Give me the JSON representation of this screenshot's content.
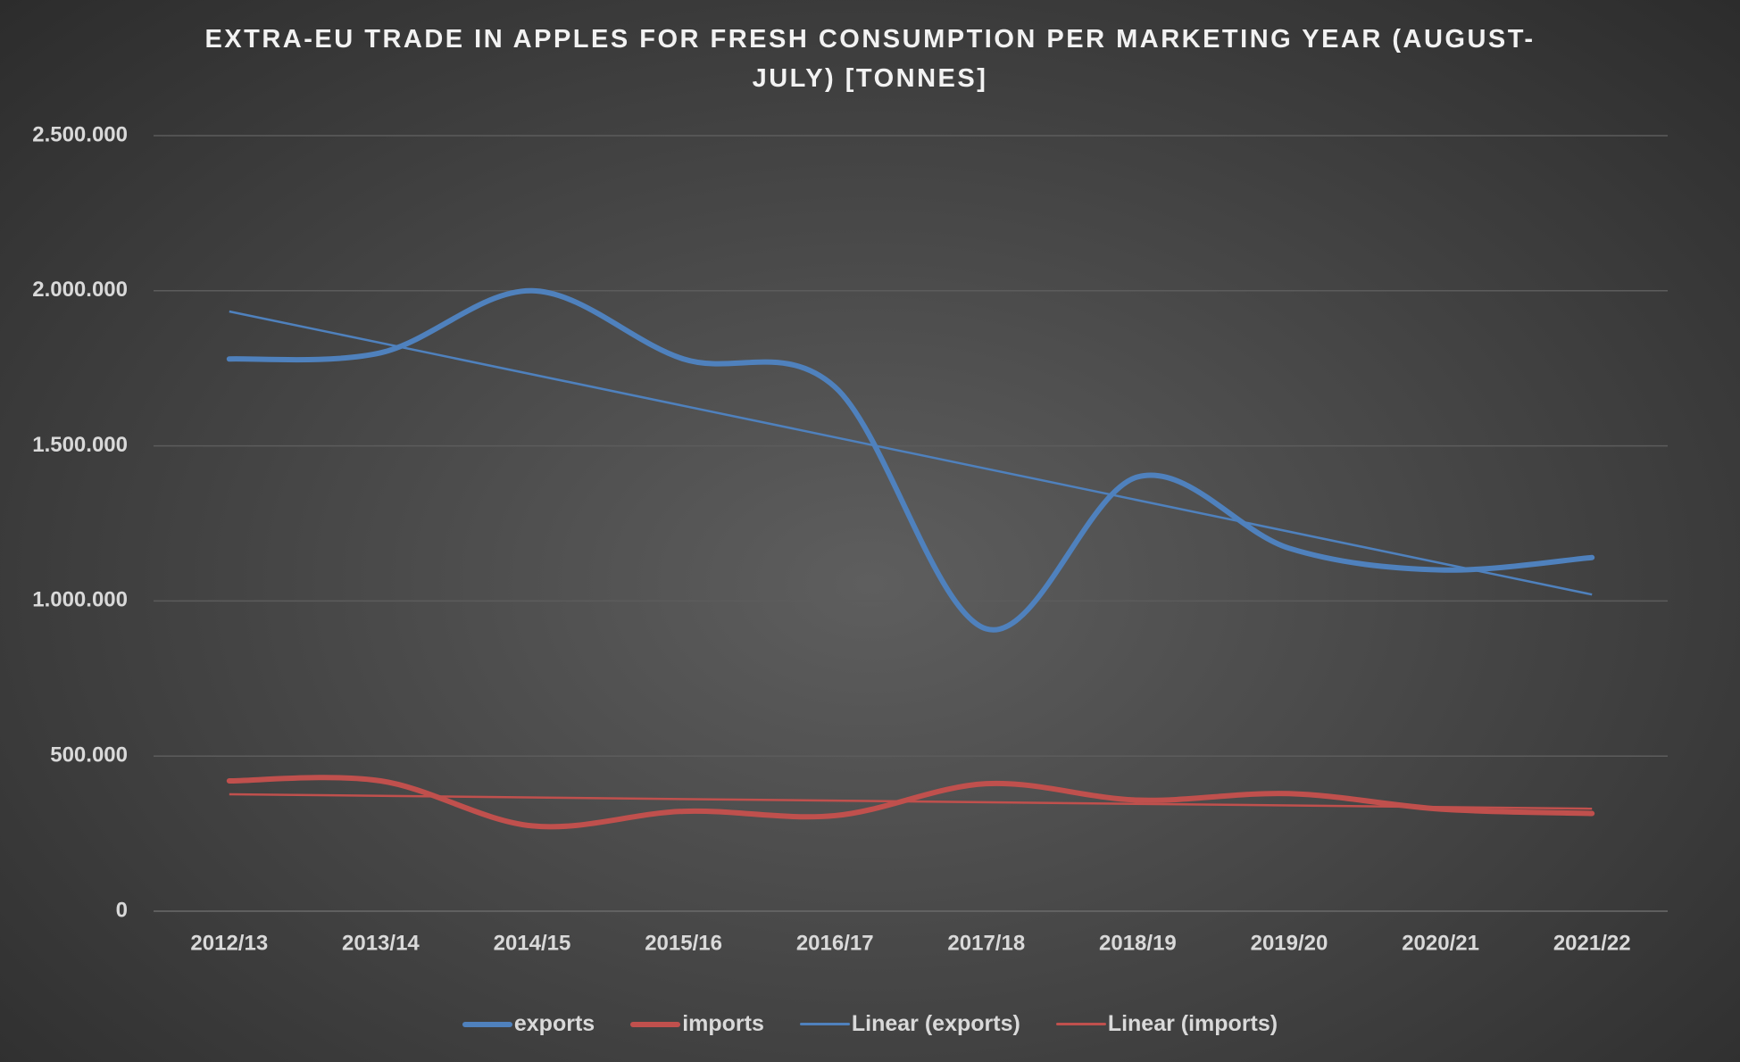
{
  "chart_data": {
    "type": "line",
    "title": "EXTRA-EU TRADE IN APPLES FOR FRESH CONSUMPTION PER MARKETING YEAR (AUGUST-JULY) [TONNES]",
    "categories": [
      "2012/13",
      "2013/14",
      "2014/15",
      "2015/16",
      "2016/17",
      "2017/18",
      "2018/19",
      "2019/20",
      "2020/21",
      "2021/22"
    ],
    "series": [
      {
        "name": "exports",
        "color": "#4f81bd",
        "smooth": true,
        "values": [
          1780000,
          1800000,
          2000000,
          1780000,
          1690000,
          910000,
          1400000,
          1170000,
          1100000,
          1140000
        ]
      },
      {
        "name": "imports",
        "color": "#c0504d",
        "smooth": true,
        "values": [
          420000,
          420000,
          275000,
          322000,
          308000,
          411000,
          358000,
          379000,
          329000,
          315000
        ]
      },
      {
        "name": "Linear (exports)",
        "color": "#4f81bd",
        "trendline": "linear",
        "of": 0
      },
      {
        "name": "Linear (imports)",
        "color": "#c0504d",
        "trendline": "linear",
        "of": 1
      }
    ],
    "ylim": [
      0,
      2500000
    ],
    "yticks": [
      0,
      {
        "value": 500000,
        "label": "500.000"
      },
      {
        "value": 1000000,
        "label": "1.000.000"
      },
      {
        "value": 1500000,
        "label": "1.500.000"
      },
      {
        "value": 2000000,
        "label": "2.000.000"
      },
      {
        "value": 2500000,
        "label": "2.500.000"
      }
    ],
    "grid": true,
    "legend": "bottom"
  }
}
